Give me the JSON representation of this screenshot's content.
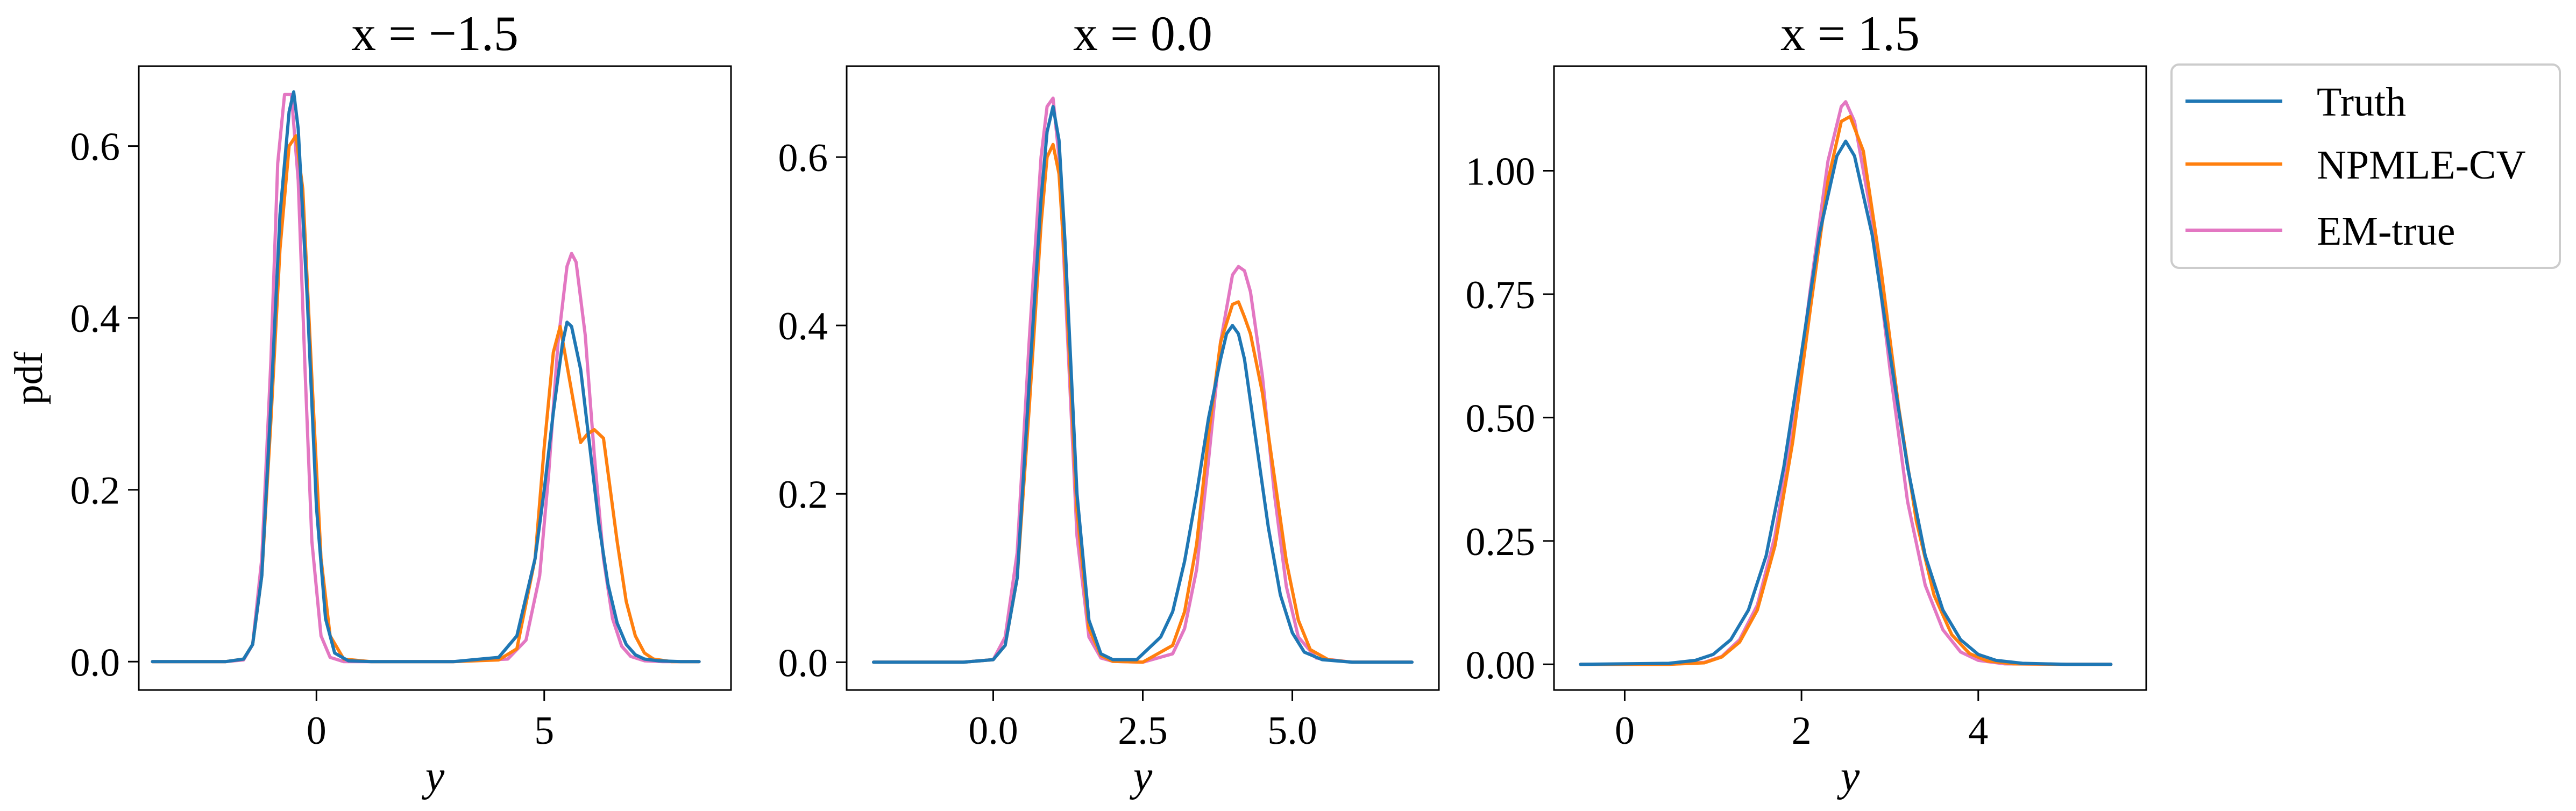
{
  "chart_data": [
    {
      "type": "line",
      "title": "x = −1.5",
      "xlabel": "y",
      "ylabel": "pdf",
      "xlim": [
        -3.9,
        9.1
      ],
      "ylim": [
        -0.033,
        0.693
      ],
      "xticks": [
        {
          "value": 0,
          "label": "0"
        },
        {
          "value": 5,
          "label": "5"
        }
      ],
      "yticks": [
        {
          "value": 0.0,
          "label": "0.0"
        },
        {
          "value": 0.2,
          "label": "0.2"
        },
        {
          "value": 0.4,
          "label": "0.4"
        },
        {
          "value": 0.6,
          "label": "0.6"
        }
      ],
      "series": [
        {
          "name": "Truth",
          "color": "#1f77b4",
          "x": [
            -3.6,
            -2.0,
            -1.6,
            -1.4,
            -1.2,
            -1.0,
            -0.8,
            -0.6,
            -0.5,
            -0.4,
            -0.2,
            0.0,
            0.2,
            0.4,
            0.7,
            1.2,
            3.0,
            4.0,
            4.4,
            4.8,
            5.0,
            5.2,
            5.4,
            5.5,
            5.6,
            5.8,
            6.0,
            6.2,
            6.4,
            6.6,
            6.8,
            7.0,
            7.2,
            7.5,
            8.0,
            8.4
          ],
          "y": [
            0,
            0,
            0.003,
            0.02,
            0.1,
            0.3,
            0.52,
            0.64,
            0.663,
            0.62,
            0.42,
            0.18,
            0.05,
            0.01,
            0.001,
            0,
            0,
            0.005,
            0.03,
            0.12,
            0.2,
            0.29,
            0.37,
            0.395,
            0.39,
            0.34,
            0.25,
            0.16,
            0.09,
            0.045,
            0.02,
            0.008,
            0.003,
            0.001,
            0,
            0
          ]
        },
        {
          "name": "NPMLE-CV",
          "color": "#ff7f0e",
          "x": [
            -3.6,
            -2.0,
            -1.6,
            -1.4,
            -1.2,
            -1.0,
            -0.8,
            -0.6,
            -0.45,
            -0.3,
            -0.1,
            0.1,
            0.3,
            0.6,
            1.2,
            3.0,
            4.0,
            4.4,
            4.8,
            5.0,
            5.2,
            5.35,
            5.55,
            5.8,
            5.95,
            6.1,
            6.3,
            6.45,
            6.6,
            6.8,
            7.0,
            7.2,
            7.4,
            7.8,
            8.4
          ],
          "y": [
            0,
            0,
            0.003,
            0.02,
            0.1,
            0.28,
            0.48,
            0.6,
            0.612,
            0.55,
            0.33,
            0.12,
            0.03,
            0.003,
            0,
            0,
            0.002,
            0.015,
            0.12,
            0.25,
            0.36,
            0.39,
            0.33,
            0.255,
            0.265,
            0.27,
            0.26,
            0.2,
            0.14,
            0.07,
            0.03,
            0.01,
            0.003,
            0,
            0
          ]
        },
        {
          "name": "EM-true",
          "color": "#e377c2",
          "x": [
            -3.6,
            -2.0,
            -1.6,
            -1.4,
            -1.2,
            -1.0,
            -0.85,
            -0.7,
            -0.55,
            -0.4,
            -0.25,
            -0.1,
            0.1,
            0.3,
            0.6,
            1.2,
            3.0,
            4.2,
            4.6,
            4.9,
            5.1,
            5.3,
            5.5,
            5.6,
            5.7,
            5.9,
            6.1,
            6.3,
            6.5,
            6.7,
            6.9,
            7.2,
            7.6,
            8.4
          ],
          "y": [
            0,
            0,
            0.002,
            0.02,
            0.12,
            0.35,
            0.58,
            0.66,
            0.66,
            0.56,
            0.34,
            0.14,
            0.03,
            0.005,
            0,
            0,
            0,
            0.003,
            0.025,
            0.1,
            0.22,
            0.37,
            0.46,
            0.475,
            0.465,
            0.38,
            0.24,
            0.12,
            0.05,
            0.018,
            0.006,
            0.001,
            0,
            0
          ]
        }
      ]
    },
    {
      "type": "line",
      "title": "x = 0.0",
      "xlabel": "y",
      "ylabel": "",
      "xlim": [
        -2.45,
        7.45
      ],
      "ylim": [
        -0.033,
        0.708
      ],
      "xticks": [
        {
          "value": 0,
          "label": "0.0"
        },
        {
          "value": 2.5,
          "label": "2.5"
        },
        {
          "value": 5,
          "label": "5.0"
        }
      ],
      "yticks": [
        {
          "value": 0.0,
          "label": "0.0"
        },
        {
          "value": 0.2,
          "label": "0.2"
        },
        {
          "value": 0.4,
          "label": "0.4"
        },
        {
          "value": 0.6,
          "label": "0.6"
        }
      ],
      "series": [
        {
          "name": "Truth",
          "color": "#1f77b4",
          "x": [
            -2.0,
            -0.5,
            0.0,
            0.2,
            0.4,
            0.6,
            0.8,
            0.9,
            1.0,
            1.1,
            1.2,
            1.4,
            1.6,
            1.8,
            2.0,
            2.4,
            2.8,
            3.0,
            3.2,
            3.4,
            3.6,
            3.8,
            3.9,
            4.0,
            4.1,
            4.2,
            4.4,
            4.6,
            4.8,
            5.0,
            5.2,
            5.5,
            6.0,
            7.0
          ],
          "y": [
            0,
            0,
            0.003,
            0.02,
            0.1,
            0.33,
            0.55,
            0.63,
            0.66,
            0.62,
            0.5,
            0.2,
            0.05,
            0.01,
            0.003,
            0.003,
            0.03,
            0.06,
            0.12,
            0.2,
            0.29,
            0.36,
            0.39,
            0.4,
            0.39,
            0.36,
            0.26,
            0.16,
            0.08,
            0.035,
            0.012,
            0.003,
            0,
            0
          ]
        },
        {
          "name": "NPMLE-CV",
          "color": "#ff7f0e",
          "x": [
            -2.0,
            -0.5,
            0.0,
            0.2,
            0.4,
            0.6,
            0.8,
            0.9,
            1.0,
            1.1,
            1.2,
            1.4,
            1.6,
            1.8,
            2.0,
            2.5,
            3.0,
            3.2,
            3.4,
            3.6,
            3.8,
            4.0,
            4.1,
            4.2,
            4.3,
            4.5,
            4.7,
            4.9,
            5.1,
            5.3,
            5.6,
            6.0,
            7.0
          ],
          "y": [
            0,
            0,
            0.003,
            0.02,
            0.1,
            0.3,
            0.52,
            0.6,
            0.615,
            0.58,
            0.47,
            0.18,
            0.04,
            0.008,
            0.001,
            0,
            0.02,
            0.06,
            0.14,
            0.27,
            0.38,
            0.425,
            0.428,
            0.41,
            0.39,
            0.32,
            0.22,
            0.12,
            0.05,
            0.015,
            0.003,
            0,
            0
          ]
        },
        {
          "name": "EM-true",
          "color": "#e377c2",
          "x": [
            -2.0,
            -0.5,
            0.0,
            0.2,
            0.4,
            0.6,
            0.8,
            0.9,
            1.0,
            1.1,
            1.2,
            1.4,
            1.6,
            1.8,
            2.0,
            2.5,
            3.0,
            3.2,
            3.4,
            3.6,
            3.8,
            4.0,
            4.1,
            4.2,
            4.3,
            4.5,
            4.7,
            4.9,
            5.1,
            5.4,
            6.0,
            7.0
          ],
          "y": [
            0,
            0,
            0.003,
            0.03,
            0.13,
            0.38,
            0.6,
            0.66,
            0.67,
            0.6,
            0.45,
            0.15,
            0.03,
            0.005,
            0.001,
            0,
            0.01,
            0.04,
            0.11,
            0.24,
            0.38,
            0.46,
            0.47,
            0.465,
            0.44,
            0.34,
            0.2,
            0.09,
            0.03,
            0.005,
            0,
            0
          ]
        }
      ]
    },
    {
      "type": "line",
      "title": "x = 1.5",
      "xlabel": "y",
      "ylabel": "",
      "xlim": [
        -0.8,
        5.9
      ],
      "ylim": [
        -0.052,
        1.212
      ],
      "xticks": [
        {
          "value": 0,
          "label": "0"
        },
        {
          "value": 2,
          "label": "2"
        },
        {
          "value": 4,
          "label": "4"
        }
      ],
      "yticks": [
        {
          "value": 0.0,
          "label": "0.00"
        },
        {
          "value": 0.25,
          "label": "0.25"
        },
        {
          "value": 0.5,
          "label": "0.50"
        },
        {
          "value": 0.75,
          "label": "0.75"
        },
        {
          "value": 1.0,
          "label": "1.00"
        }
      ],
      "series": [
        {
          "name": "Truth",
          "color": "#1f77b4",
          "x": [
            -0.5,
            0.5,
            0.8,
            1.0,
            1.2,
            1.4,
            1.6,
            1.8,
            2.0,
            2.2,
            2.4,
            2.5,
            2.6,
            2.8,
            3.0,
            3.2,
            3.4,
            3.6,
            3.8,
            4.0,
            4.2,
            4.5,
            5.0,
            5.5
          ],
          "y": [
            0,
            0.002,
            0.008,
            0.02,
            0.05,
            0.11,
            0.22,
            0.4,
            0.63,
            0.87,
            1.03,
            1.06,
            1.03,
            0.87,
            0.63,
            0.4,
            0.22,
            0.11,
            0.05,
            0.02,
            0.008,
            0.002,
            0,
            0
          ]
        },
        {
          "name": "NPMLE-CV",
          "color": "#ff7f0e",
          "x": [
            -0.5,
            0.5,
            0.9,
            1.1,
            1.3,
            1.5,
            1.7,
            1.9,
            2.1,
            2.3,
            2.45,
            2.55,
            2.7,
            2.9,
            3.1,
            3.3,
            3.5,
            3.7,
            3.9,
            4.1,
            4.4,
            5.0,
            5.5
          ],
          "y": [
            0,
            0,
            0.003,
            0.015,
            0.045,
            0.11,
            0.24,
            0.45,
            0.72,
            0.98,
            1.1,
            1.11,
            1.04,
            0.8,
            0.52,
            0.29,
            0.14,
            0.06,
            0.022,
            0.007,
            0.001,
            0,
            0
          ]
        },
        {
          "name": "EM-true",
          "color": "#e377c2",
          "x": [
            -0.5,
            0.5,
            0.9,
            1.1,
            1.3,
            1.5,
            1.7,
            1.9,
            2.1,
            2.3,
            2.45,
            2.5,
            2.6,
            2.8,
            3.0,
            3.2,
            3.4,
            3.6,
            3.8,
            4.0,
            4.3,
            5.0,
            5.5
          ],
          "y": [
            0,
            0,
            0.004,
            0.016,
            0.05,
            0.12,
            0.26,
            0.48,
            0.76,
            1.02,
            1.13,
            1.14,
            1.1,
            0.9,
            0.6,
            0.33,
            0.16,
            0.07,
            0.025,
            0.008,
            0.001,
            0,
            0
          ]
        }
      ]
    }
  ],
  "legend": {
    "placement": "right",
    "entries": [
      {
        "label": "Truth",
        "color": "#1f77b4"
      },
      {
        "label": "NPMLE-CV",
        "color": "#ff7f0e"
      },
      {
        "label": "EM-true",
        "color": "#e377c2"
      }
    ]
  }
}
